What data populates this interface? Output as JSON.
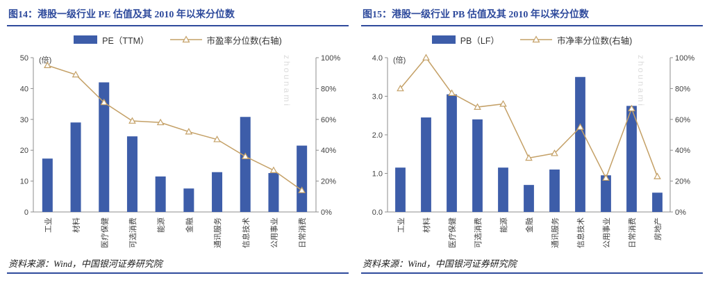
{
  "page": {
    "watermark": "zhounami"
  },
  "colors": {
    "bar": "#3D5DA9",
    "line": "#C4A066",
    "title": "#2E4A9C",
    "rule": "#2E4A9C",
    "axis": "#8C8C8C",
    "text": "#404040"
  },
  "panels": [
    {
      "source": "资料来源：Wind，中国银河证券研究院"
    },
    {
      "source": "资料来源：Wind，中国银河证券研究院"
    }
  ],
  "chart_data": [
    {
      "type": "bar+line",
      "title": "图14：港股一级行业 PE 估值及其 2010 年以来分位数",
      "categories": [
        "工业",
        "材料",
        "医疗保健",
        "可选消费",
        "能源",
        "金融",
        "通讯服务",
        "信息技术",
        "公用事业",
        "日常消费"
      ],
      "series": [
        {
          "name": "PE（TTM）",
          "type": "bar",
          "axis": "left",
          "values": [
            17.3,
            29.0,
            42.0,
            24.5,
            11.5,
            7.6,
            12.9,
            30.8,
            12.6,
            21.5
          ]
        },
        {
          "name": "市盈率分位数(右轴)",
          "type": "line",
          "axis": "right",
          "values": [
            95,
            89,
            71,
            59,
            58,
            52,
            47,
            36,
            27,
            14
          ]
        }
      ],
      "left_axis": {
        "label": "(倍)",
        "min": 0,
        "max": 50,
        "step": 10,
        "decimals": 0
      },
      "right_axis": {
        "min": 0,
        "max": 100,
        "step": 20,
        "format": "percent"
      },
      "legend_position": "top",
      "grid": false
    },
    {
      "type": "bar+line",
      "title": "图15：港股一级行业 PB 估值及其 2010 年以来分位数",
      "categories": [
        "工业",
        "材料",
        "医疗保健",
        "可选消费",
        "能源",
        "金融",
        "通讯服务",
        "信息技术",
        "公用事业",
        "日常消费",
        "房地产"
      ],
      "series": [
        {
          "name": "PB（LF）",
          "type": "bar",
          "axis": "left",
          "values": [
            1.15,
            2.45,
            3.05,
            2.4,
            1.15,
            0.7,
            1.1,
            3.5,
            0.95,
            2.75,
            0.5
          ]
        },
        {
          "name": "市净率分位数(右轴)",
          "type": "line",
          "axis": "right",
          "values": [
            80,
            100,
            77,
            68,
            70,
            35,
            38,
            55,
            22,
            67,
            23
          ]
        }
      ],
      "left_axis": {
        "label": "(倍)",
        "min": 0,
        "max": 4,
        "step": 1,
        "decimals": 1
      },
      "right_axis": {
        "min": 0,
        "max": 100,
        "step": 20,
        "format": "percent"
      },
      "legend_position": "top",
      "grid": false
    }
  ]
}
